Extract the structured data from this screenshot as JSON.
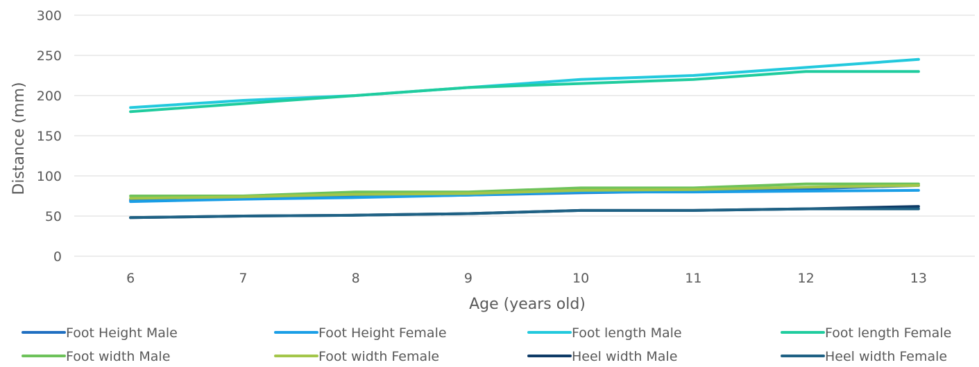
{
  "chart_data": {
    "type": "line",
    "title": "",
    "xlabel": "Age (years old)",
    "ylabel": "Distance (mm)",
    "categories": [
      "6",
      "7",
      "8",
      "9",
      "10",
      "11",
      "12",
      "13"
    ],
    "ylim": [
      0,
      300
    ],
    "yticks": [
      "0",
      "50",
      "100",
      "150",
      "200",
      "250",
      "300"
    ],
    "grid": true,
    "legend_position": "bottom",
    "series": [
      {
        "name": "Foot Height Male",
        "color": "#1f6fc1",
        "values": [
          70,
          72,
          74,
          76,
          79,
          81,
          84,
          88
        ]
      },
      {
        "name": "Foot Height Female",
        "color": "#1a9ee6",
        "values": [
          68,
          71,
          73,
          76,
          80,
          80,
          81,
          82
        ]
      },
      {
        "name": "Foot length Male",
        "color": "#22c9dd",
        "values": [
          185,
          194,
          200,
          210,
          220,
          225,
          235,
          245
        ]
      },
      {
        "name": "Foot length Female",
        "color": "#1fcc9e",
        "values": [
          180,
          190,
          200,
          210,
          215,
          220,
          230,
          230
        ]
      },
      {
        "name": "Foot width Male",
        "color": "#6dc25a",
        "values": [
          75,
          75,
          80,
          80,
          85,
          85,
          90,
          90
        ]
      },
      {
        "name": "Foot width Female",
        "color": "#a3c64a",
        "values": [
          72,
          74,
          77,
          78,
          82,
          83,
          86,
          88
        ]
      },
      {
        "name": "Heel width Male",
        "color": "#0e3a66",
        "values": [
          48,
          50,
          51,
          53,
          57,
          57,
          59,
          62
        ]
      },
      {
        "name": "Heel width Female",
        "color": "#1e6184",
        "values": [
          48,
          50,
          51,
          53,
          57,
          57,
          59,
          59
        ]
      }
    ]
  }
}
